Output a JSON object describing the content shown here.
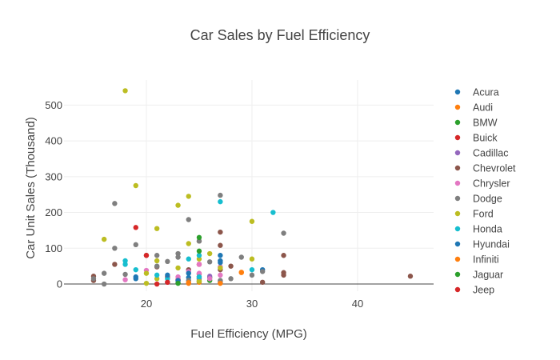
{
  "chart_data": {
    "type": "scatter",
    "title": "Car Sales by Fuel Efficiency",
    "xlabel": "Fuel Efficiency (MPG)",
    "ylabel": "Car Unit Sales (Thousand)",
    "xlim": [
      12.2,
      47.2
    ],
    "ylim": [
      -20,
      570
    ],
    "xticks": [
      20,
      30,
      40
    ],
    "yticks": [
      0,
      100,
      200,
      300,
      400,
      500
    ],
    "grid": true,
    "legend_position": "right",
    "series": [
      {
        "name": "Acura",
        "color": "#1f77b4",
        "x": [
          24,
          25,
          27,
          27,
          31
        ],
        "y": [
          18,
          20,
          80,
          65,
          40
        ]
      },
      {
        "name": "Audi",
        "color": "#ff7f0e",
        "x": [
          24,
          25,
          29
        ],
        "y": [
          2,
          5,
          33
        ]
      },
      {
        "name": "BMW",
        "color": "#2ca02c",
        "x": [
          25,
          25,
          26,
          26
        ],
        "y": [
          8,
          14,
          10,
          18
        ]
      },
      {
        "name": "Buick",
        "color": "#d62728",
        "x": [
          22,
          23,
          25,
          25
        ],
        "y": [
          20,
          12,
          28,
          55
        ]
      },
      {
        "name": "Cadillac",
        "color": "#9467bd",
        "x": [
          22,
          23,
          25,
          26
        ],
        "y": [
          5,
          10,
          15,
          22
        ]
      },
      {
        "name": "Chevrolet",
        "color": "#8c564b",
        "x": [
          15,
          15,
          17,
          20,
          21,
          24,
          25,
          27,
          27,
          27,
          27,
          28,
          31,
          33,
          33,
          33,
          45
        ],
        "y": [
          10,
          22,
          55,
          80,
          48,
          40,
          120,
          145,
          108,
          40,
          5,
          50,
          5,
          80,
          32,
          25,
          22
        ]
      },
      {
        "name": "Chrysler",
        "color": "#e377c2",
        "x": [
          18,
          20,
          23,
          24,
          25,
          25,
          26,
          27,
          27
        ],
        "y": [
          12,
          38,
          20,
          35,
          30,
          55,
          15,
          25,
          48
        ]
      },
      {
        "name": "Dodge",
        "color": "#7f7f7f",
        "x": [
          15,
          16,
          16,
          17,
          17,
          18,
          19,
          21,
          21,
          22,
          23,
          23,
          23,
          24,
          24,
          25,
          26,
          27,
          27,
          28,
          29,
          30,
          31,
          33
        ],
        "y": [
          15,
          0,
          30,
          225,
          100,
          27,
          110,
          80,
          50,
          63,
          85,
          75,
          5,
          180,
          10,
          120,
          62,
          248,
          10,
          15,
          75,
          25,
          35,
          142
        ]
      },
      {
        "name": "Ford",
        "color": "#bcbd22",
        "x": [
          16,
          18,
          19,
          20,
          20,
          21,
          21,
          21,
          23,
          23,
          24,
          24,
          25,
          25,
          26,
          27,
          30,
          30
        ],
        "y": [
          125,
          540,
          275,
          30,
          2,
          155,
          65,
          15,
          220,
          45,
          245,
          113,
          8,
          70,
          85,
          45,
          175,
          70
        ]
      },
      {
        "name": "Honda",
        "color": "#17becf",
        "x": [
          18,
          18,
          19,
          21,
          22,
          24,
          25,
          25,
          27,
          30,
          32
        ],
        "y": [
          55,
          65,
          40,
          25,
          15,
          70,
          80,
          20,
          230,
          40,
          200
        ]
      },
      {
        "name": "Hyundai",
        "color": "#1f77b4",
        "x": [
          19,
          19,
          22,
          23,
          24,
          27
        ],
        "y": [
          15,
          20,
          25,
          10,
          30,
          60
        ]
      },
      {
        "name": "Infiniti",
        "color": "#ff7f0e",
        "x": [
          24,
          27,
          29
        ],
        "y": [
          4,
          2,
          32
        ]
      },
      {
        "name": "Jaguar",
        "color": "#2ca02c",
        "x": [
          23,
          25,
          25
        ],
        "y": [
          2,
          130,
          92
        ]
      },
      {
        "name": "Jeep",
        "color": "#d62728",
        "x": [
          19,
          20,
          21,
          22
        ],
        "y": [
          158,
          80,
          0,
          5
        ]
      }
    ]
  }
}
